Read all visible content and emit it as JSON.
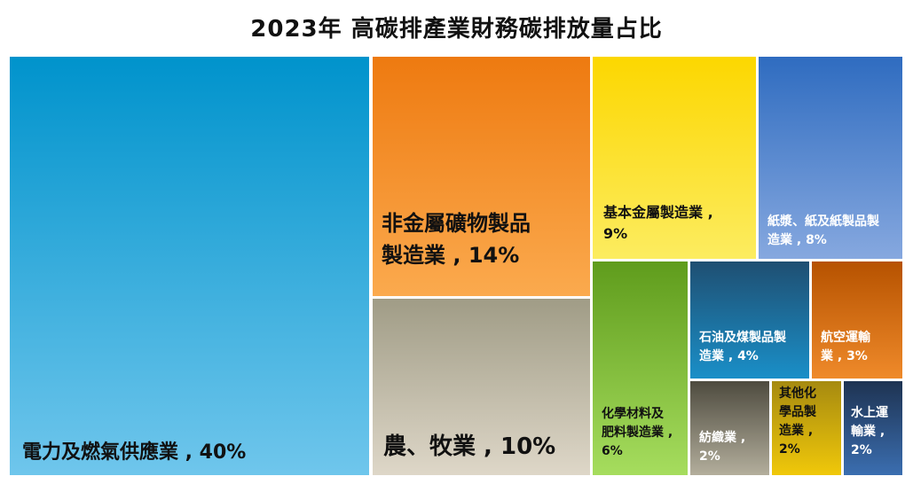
{
  "chart_data": {
    "type": "treemap",
    "title": "2023年 高碳排產業財務碳排放量占比",
    "items": [
      {
        "id": "electricity",
        "name": "電力及燃氣供應業",
        "value": 40,
        "label_line1": "",
        "label_line2": "電力及燃氣供應業 , 40%",
        "color": "#2ea3dc"
      },
      {
        "id": "nonmetal",
        "name": "非金屬礦物製品製造業",
        "value": 14,
        "label_line1": "非金屬礦物製品",
        "label_line2": "製造業 , 14%",
        "color": "#f5902a"
      },
      {
        "id": "agriculture",
        "name": "農、牧業",
        "value": 10,
        "label_line1": "",
        "label_line2": "農、牧業 , 10%",
        "color": "#c9c1ad"
      },
      {
        "id": "basic-metal",
        "name": "基本金屬製造業",
        "value": 9,
        "label_line1": "基本金屬製造業 ,",
        "label_line2": "9%",
        "color": "#fbe32a"
      },
      {
        "id": "paper",
        "name": "紙漿、紙及紙製品製造業",
        "value": 8,
        "label_line1": "紙漿、紙及紙製品製",
        "label_line2": "造業 , 8%",
        "color": "#4f84c9"
      },
      {
        "id": "chemical-material",
        "name": "化學材料及肥料製造業",
        "value": 6,
        "label_line1": "化學材料及",
        "label_line2": "肥料製造業 ,",
        "label_line3": "6%",
        "color": "#86c842"
      },
      {
        "id": "petroleum",
        "name": "石油及煤製品製造業",
        "value": 4,
        "label_line1": "石油及煤製品製",
        "label_line2": "造業 , 4%",
        "color": "#2a6a94"
      },
      {
        "id": "aviation",
        "name": "航空運輸業",
        "value": 3,
        "label_line1": "航空運輸",
        "label_line2": "業 , 3%",
        "color": "#d4670a"
      },
      {
        "id": "textile",
        "name": "紡織業",
        "value": 2,
        "label_line1": "紡織業 ,",
        "label_line2": "2%",
        "color": "#8f8a7c"
      },
      {
        "id": "other-chemical",
        "name": "其他化學品製造業",
        "value": 2,
        "label_line1": "其他化",
        "label_line2": "學品製",
        "label_line3": "造業 ,",
        "label_line4": "2%",
        "color": "#d9b12a"
      },
      {
        "id": "water-transport",
        "name": "水上運輸業",
        "value": 2,
        "label_line1": "水上運",
        "label_line2": "輸業 ,",
        "label_line3": "2%",
        "color": "#2f4f80"
      }
    ]
  }
}
